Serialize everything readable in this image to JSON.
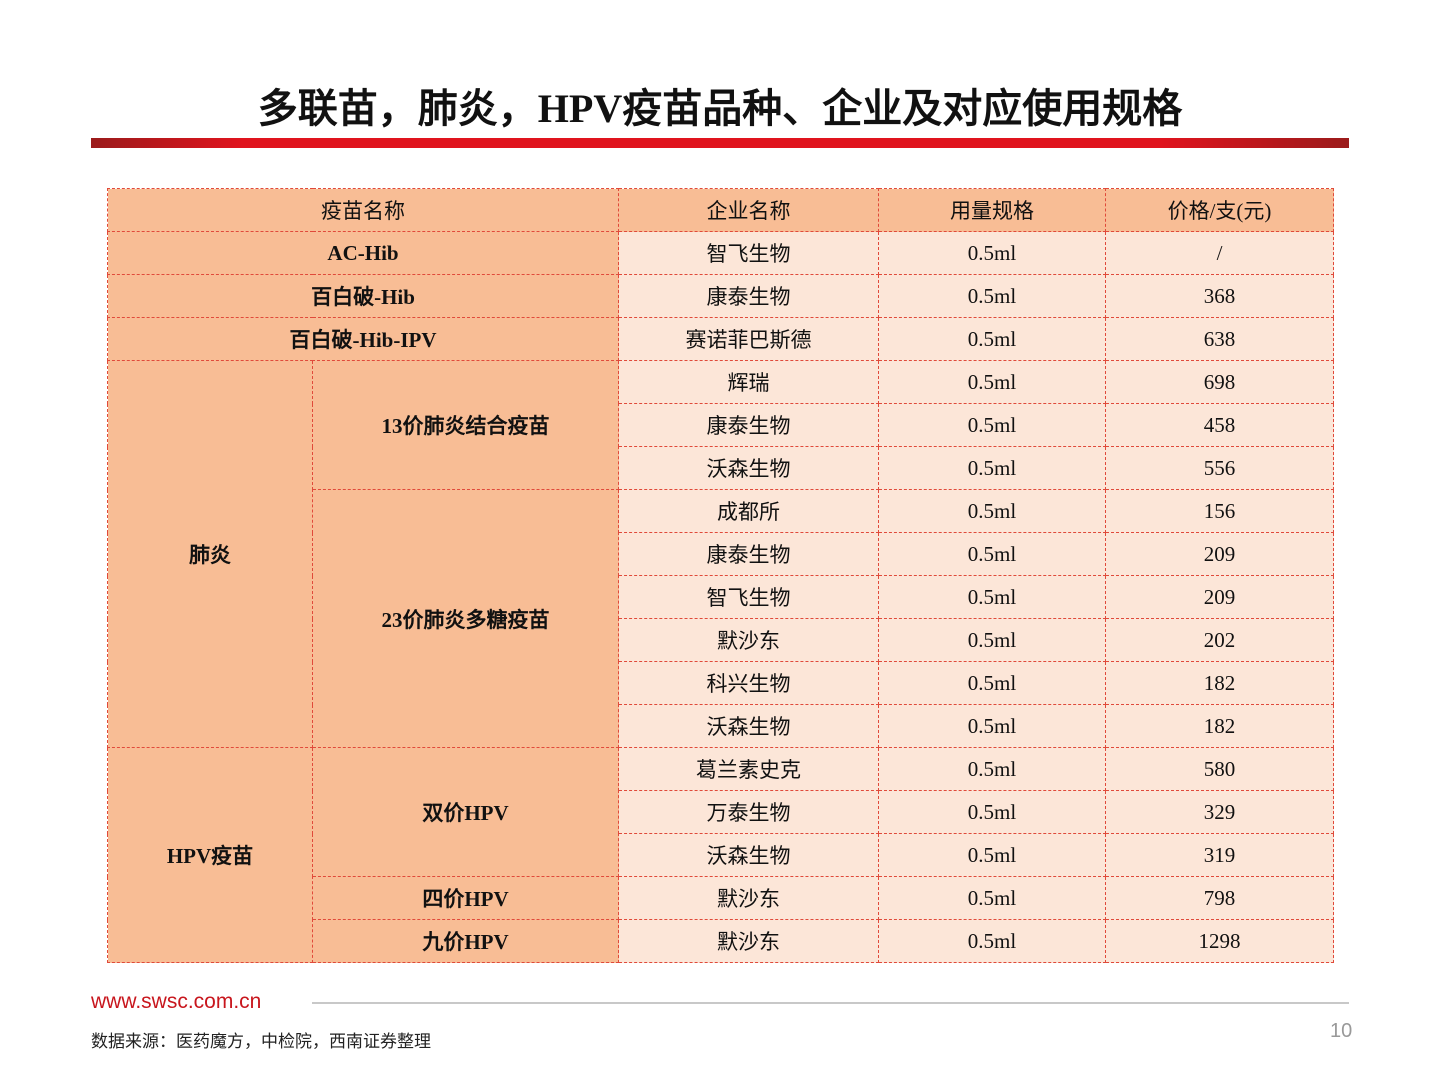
{
  "header": {
    "title": "多联苗，肺炎，HPV疫苗品种、企业及对应使用规格"
  },
  "table": {
    "columns": [
      "疫苗名称",
      "企业名称",
      "用量规格",
      "价格/支(元)"
    ],
    "simple_rows": [
      [
        "AC-Hib",
        "智飞生物",
        "0.5ml",
        "/"
      ],
      [
        "百白破-Hib",
        "康泰生物",
        "0.5ml",
        368
      ],
      [
        "百白破-Hib-IPV",
        "赛诺菲巴斯德",
        "0.5ml",
        638
      ]
    ],
    "groups": [
      {
        "name": "肺炎",
        "subgroups": [
          {
            "name": "13价肺炎结合疫苗",
            "items": [
              [
                "辉瑞",
                "0.5ml",
                698
              ],
              [
                "康泰生物",
                "0.5ml",
                458
              ],
              [
                "沃森生物",
                "0.5ml",
                556
              ]
            ]
          },
          {
            "name": "23价肺炎多糖疫苗",
            "items": [
              [
                "成都所",
                "0.5ml",
                156
              ],
              [
                "康泰生物",
                "0.5ml",
                209
              ],
              [
                "智飞生物",
                "0.5ml",
                209
              ],
              [
                "默沙东",
                "0.5ml",
                202
              ],
              [
                "科兴生物",
                "0.5ml",
                182
              ],
              [
                "沃森生物",
                "0.5ml",
                182
              ]
            ]
          }
        ]
      },
      {
        "name": "HPV疫苗",
        "subgroups": [
          {
            "name": "双价HPV",
            "items": [
              [
                "葛兰素史克",
                "0.5ml",
                580
              ],
              [
                "万泰生物",
                "0.5ml",
                329
              ],
              [
                "沃森生物",
                "0.5ml",
                319
              ]
            ]
          },
          {
            "name": "四价HPV",
            "items": [
              [
                "默沙东",
                "0.5ml",
                798
              ]
            ]
          },
          {
            "name": "九价HPV",
            "items": [
              [
                "默沙东",
                "0.5ml",
                1298
              ]
            ]
          }
        ]
      }
    ]
  },
  "footer": {
    "website": "www.swsc.com.cn",
    "source": "数据来源：医药魔方，中检院，西南证券整理",
    "page": "10"
  }
}
